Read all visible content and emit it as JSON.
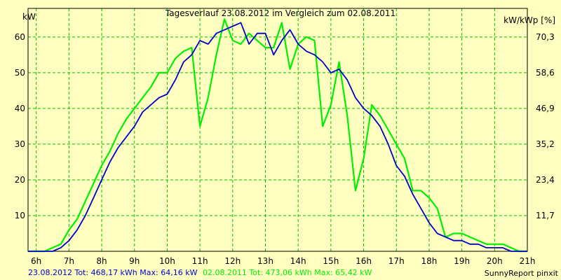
{
  "chart_data": {
    "type": "line",
    "title": "Tagesverlauf 23.08.2012 im Vergleich zum 02.08.2011",
    "ylabel_left": "kW",
    "ylabel_right": "kW/kWp [%]",
    "x_ticks": [
      "6h",
      "7h",
      "8h",
      "9h",
      "10h",
      "11h",
      "12h",
      "13h",
      "14h",
      "15h",
      "16h",
      "17h",
      "18h",
      "19h",
      "20h",
      "21h"
    ],
    "y_ticks_left": [
      "10",
      "20",
      "30",
      "40",
      "50",
      "60"
    ],
    "y_ticks_right": [
      "11,7",
      "23,4",
      "35,2",
      "46,9",
      "58,6",
      "70,3"
    ],
    "xlim": [
      5.75,
      21
    ],
    "ylim": [
      0,
      68
    ],
    "grid": true,
    "colors": {
      "background": "#FFFFC0",
      "grid": "#00C000",
      "series_2012": "#0000C8",
      "series_2011": "#00EE00"
    },
    "footer": {
      "series_2012_summary": "23.08.2012 Tot: 468,17 kWh Max: 64,16 kW",
      "series_2011_summary": "02.08.2011 Tot: 473,06 kWh Max: 65,42 kW",
      "brand": "SunnyReport pinxit"
    },
    "series": [
      {
        "key": "series_2012",
        "x": [
          5.75,
          6.0,
          6.25,
          6.5,
          6.75,
          7.0,
          7.25,
          7.5,
          7.75,
          8.0,
          8.25,
          8.5,
          8.75,
          9.0,
          9.25,
          9.5,
          9.75,
          10.0,
          10.25,
          10.5,
          10.75,
          11.0,
          11.25,
          11.5,
          11.75,
          12.0,
          12.25,
          12.5,
          12.75,
          13.0,
          13.25,
          13.5,
          13.75,
          14.0,
          14.25,
          14.5,
          14.75,
          15.0,
          15.25,
          15.5,
          15.75,
          16.0,
          16.25,
          16.5,
          16.75,
          17.0,
          17.25,
          17.5,
          17.75,
          18.0,
          18.25,
          18.5,
          18.75,
          19.0,
          19.25,
          19.5,
          19.75,
          20.0,
          20.25,
          20.5,
          20.75,
          21.0
        ],
        "y": [
          0,
          0,
          0,
          0,
          1,
          3,
          6,
          10,
          15,
          20,
          25,
          29,
          32,
          35,
          39,
          41,
          43,
          44,
          48,
          53,
          55,
          59,
          58,
          61,
          62,
          63,
          64,
          58,
          61,
          61,
          55,
          59,
          62,
          58,
          56,
          55,
          53,
          50,
          51,
          48,
          43,
          40,
          38,
          35,
          30,
          24,
          21,
          16,
          12,
          8,
          5,
          4,
          3,
          3,
          2,
          2,
          1,
          1,
          1,
          0,
          0,
          0
        ]
      },
      {
        "key": "series_2011",
        "x": [
          5.75,
          6.0,
          6.25,
          6.5,
          6.75,
          7.0,
          7.25,
          7.5,
          7.75,
          8.0,
          8.25,
          8.5,
          8.75,
          9.0,
          9.25,
          9.5,
          9.75,
          10.0,
          10.25,
          10.5,
          10.75,
          11.0,
          11.25,
          11.5,
          11.75,
          12.0,
          12.25,
          12.5,
          12.75,
          13.0,
          13.25,
          13.5,
          13.75,
          14.0,
          14.25,
          14.5,
          14.75,
          15.0,
          15.25,
          15.5,
          15.75,
          16.0,
          16.25,
          16.5,
          16.75,
          17.0,
          17.25,
          17.5,
          17.75,
          18.0,
          18.25,
          18.5,
          18.75,
          19.0,
          19.25,
          19.5,
          19.75,
          20.0,
          20.25,
          20.5,
          20.75,
          21.0
        ],
        "y": [
          0,
          0,
          0,
          1,
          2,
          6,
          9,
          14,
          19,
          24,
          28,
          33,
          37,
          40,
          43,
          46,
          50,
          50,
          54,
          56,
          57,
          35,
          43,
          55,
          65,
          59,
          58,
          61,
          59,
          57,
          57,
          64,
          51,
          58,
          60,
          59,
          35,
          41,
          53,
          38,
          17,
          26,
          41,
          38,
          34,
          30,
          26,
          17,
          17,
          15,
          12,
          4,
          5,
          5,
          4,
          3,
          2,
          2,
          2,
          1,
          0,
          0
        ]
      }
    ]
  }
}
